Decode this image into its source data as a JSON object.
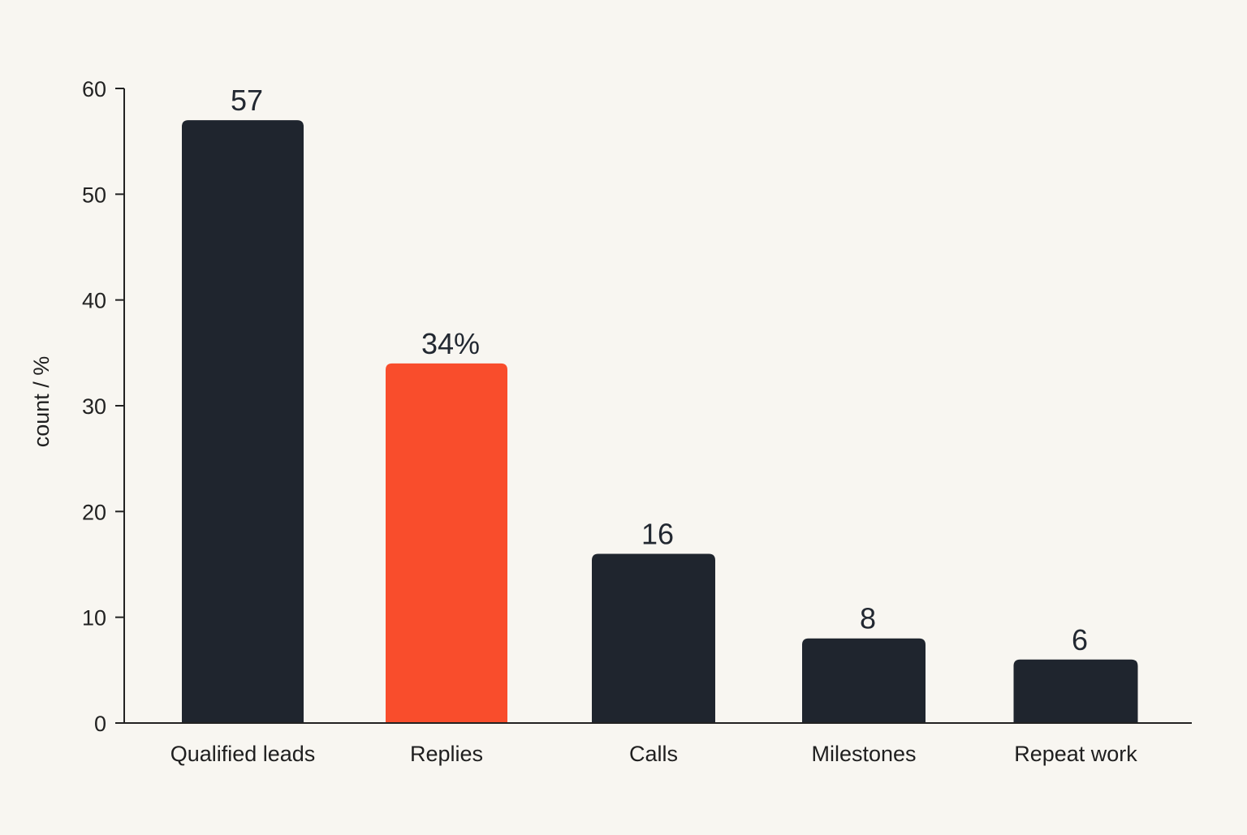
{
  "chart_data": {
    "type": "bar",
    "title": "",
    "xlabel": "",
    "ylabel": "count / %",
    "ylim": [
      0,
      60
    ],
    "yticks": [
      0,
      10,
      20,
      30,
      40,
      50,
      60
    ],
    "grid": false,
    "categories": [
      "Qualified leads",
      "Replies",
      "Calls",
      "Milestones",
      "Repeat work"
    ],
    "values": [
      57,
      34,
      16,
      8,
      6
    ],
    "value_labels": [
      "57",
      "34%",
      "16",
      "8",
      "6"
    ],
    "bar_colors": [
      "#1f252e",
      "#f94d2c",
      "#1f252e",
      "#1f252e",
      "#1f252e"
    ]
  }
}
